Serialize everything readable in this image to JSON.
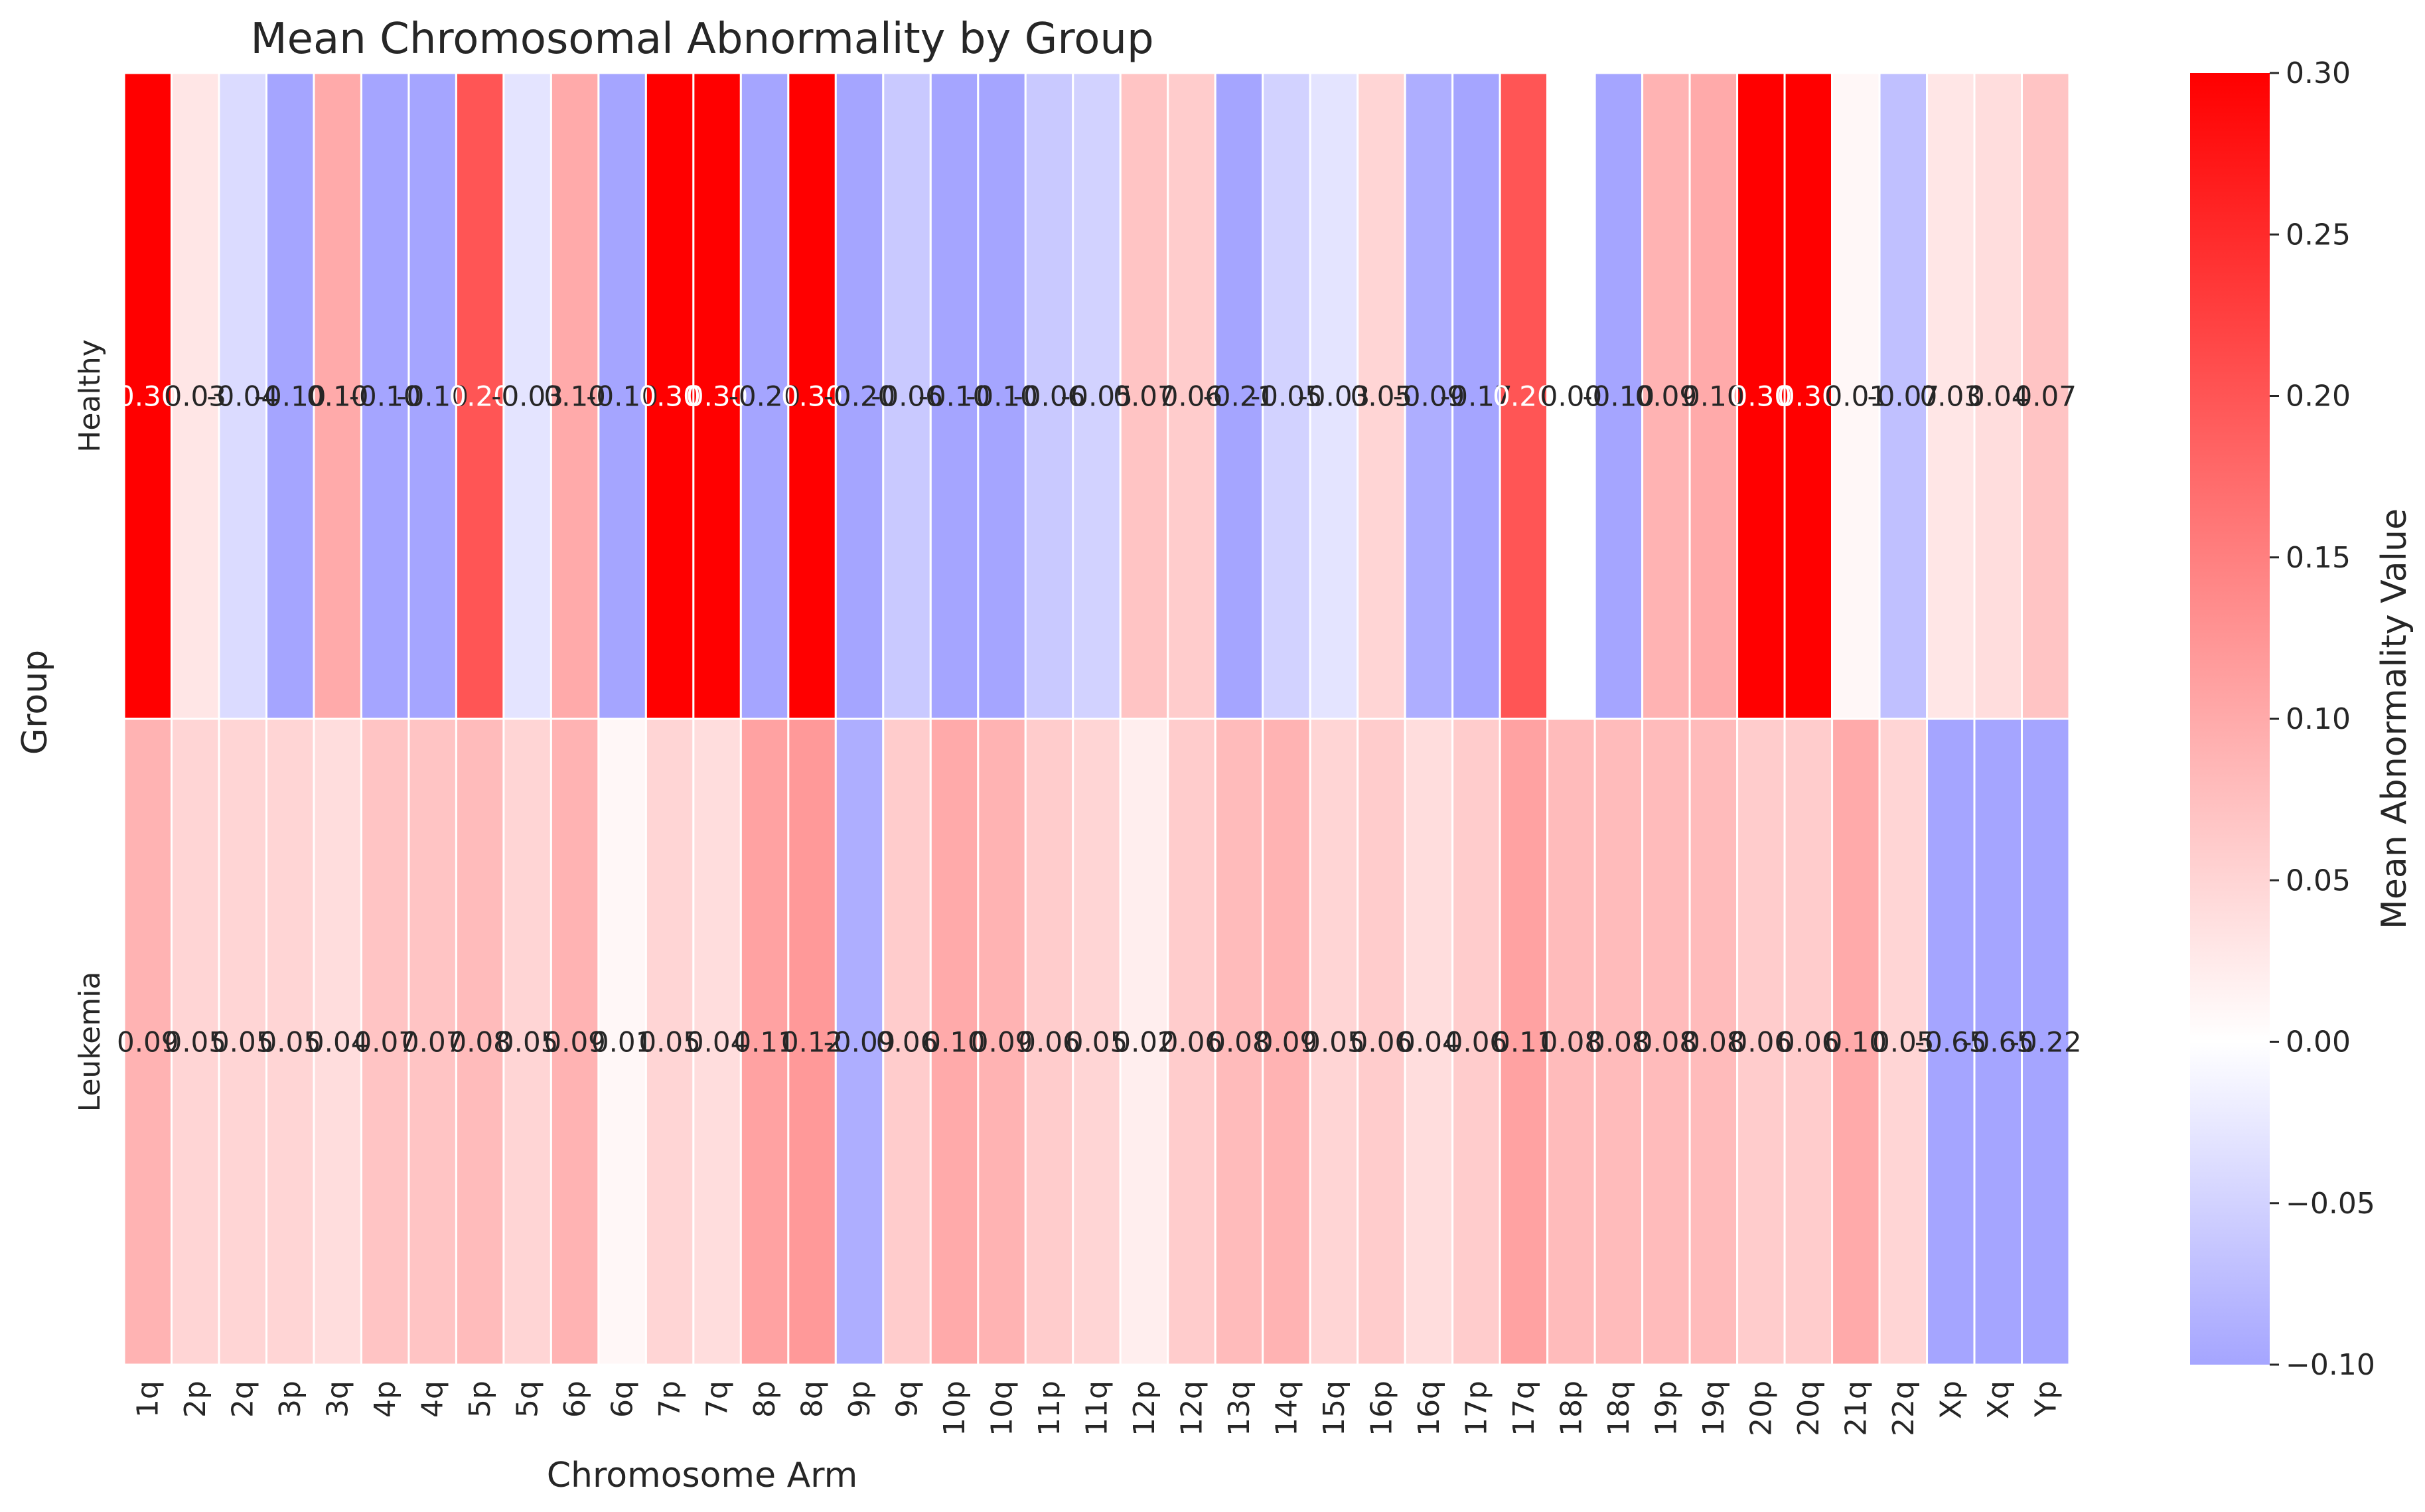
{
  "chart_data": {
    "type": "heatmap",
    "title": "Mean Chromosomal Abnormality by Group",
    "xlabel": "Chromosome Arm",
    "ylabel": "Group",
    "colorbar_label": "Mean Abnormality Value",
    "x": [
      "1q",
      "2p",
      "2q",
      "3p",
      "3q",
      "4p",
      "4q",
      "5p",
      "5q",
      "6p",
      "6q",
      "7p",
      "7q",
      "8p",
      "8q",
      "9p",
      "9q",
      "10p",
      "10q",
      "11p",
      "11q",
      "12p",
      "12q",
      "13q",
      "14q",
      "15q",
      "16p",
      "16q",
      "17p",
      "17q",
      "18p",
      "18q",
      "19p",
      "19q",
      "20p",
      "20q",
      "21q",
      "22q",
      "Xp",
      "Xq",
      "Yp"
    ],
    "y": [
      "Healthy",
      "Leukemia"
    ],
    "values": [
      [
        0.3,
        0.03,
        -0.04,
        -0.1,
        0.1,
        -0.1,
        -0.1,
        0.2,
        -0.03,
        0.1,
        -0.1,
        0.3,
        0.3,
        -0.2,
        0.3,
        -0.2,
        -0.06,
        -0.1,
        -0.1,
        -0.06,
        -0.05,
        0.07,
        0.06,
        -0.21,
        -0.05,
        -0.03,
        0.05,
        -0.09,
        -0.17,
        0.2,
        0.0,
        -0.1,
        0.09,
        0.1,
        0.3,
        0.3,
        0.01,
        -0.07,
        0.03,
        0.04,
        0.07
      ],
      [
        0.09,
        0.05,
        0.05,
        0.05,
        0.04,
        0.07,
        0.07,
        0.08,
        0.05,
        0.09,
        0.01,
        0.05,
        0.04,
        0.11,
        0.12,
        -0.09,
        0.06,
        0.1,
        0.09,
        0.06,
        0.05,
        0.02,
        0.06,
        0.08,
        0.09,
        0.05,
        0.06,
        0.04,
        0.06,
        0.11,
        0.08,
        0.08,
        0.08,
        0.08,
        0.06,
        0.06,
        0.1,
        0.05,
        -0.65,
        -0.65,
        -0.22
      ]
    ],
    "value_format": "2 decimals",
    "vmin": -0.1,
    "vmax": 0.3,
    "colormap": {
      "low": "#a5a5ff",
      "mid": "#ffffff",
      "high": "#ff0000",
      "center": 0.0
    },
    "colorbar_ticks": [
      "0.30",
      "0.25",
      "0.20",
      "0.15",
      "0.10",
      "0.05",
      "0.00",
      "−0.05",
      "−0.10"
    ],
    "grid": false,
    "cell_separator_color": "#ffffff"
  }
}
